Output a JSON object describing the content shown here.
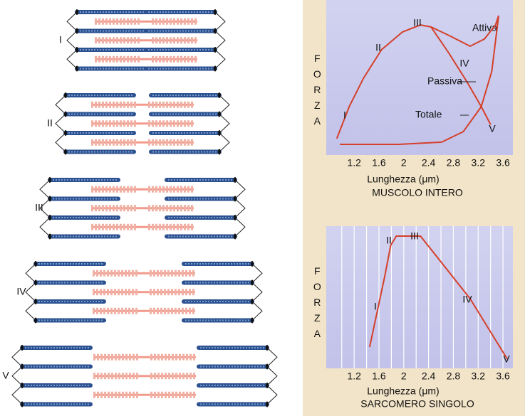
{
  "diagram": {
    "labels": [
      "I",
      "II",
      "III",
      "IV",
      "V"
    ]
  },
  "chart_data": [
    {
      "type": "line",
      "subtitle": "MUSCOLO INTERO",
      "xlabel": "Lunghezza (μm)",
      "ylabel": "FORZA",
      "xlim": [
        0.75,
        3.76
      ],
      "ylim": [
        0,
        100
      ],
      "xticks": [
        1.2,
        1.6,
        2.0,
        2.4,
        2.8,
        3.2,
        3.6
      ],
      "stage_labels": [
        "I",
        "II",
        "III",
        "IV",
        "V"
      ],
      "color": "#d4402a",
      "series": [
        {
          "name": "Attiva",
          "x": [
            0.92,
            1.12,
            1.35,
            1.64,
            1.98,
            2.27,
            2.44,
            2.73,
            3.02,
            3.25,
            3.4
          ],
          "values": [
            10.6,
            31.2,
            49.5,
            67.9,
            79.4,
            83.9,
            82.6,
            65.6,
            47.2,
            31.2,
            19.7
          ]
        },
        {
          "name": "Passiva",
          "x": [
            0.97,
            1.92,
            2.61,
            2.96,
            3.25,
            3.42,
            3.53
          ],
          "values": [
            6.9,
            6.9,
            8.3,
            15.1,
            31.2,
            54.1,
            89.9
          ]
        },
        {
          "name": "Totale",
          "x": [
            2.44,
            2.73,
            3.07,
            3.3,
            3.48,
            3.53
          ],
          "values": [
            82.6,
            77.1,
            70.2,
            74.8,
            83.9,
            89.9
          ]
        }
      ]
    },
    {
      "type": "line",
      "subtitle": "SARCOMERO SINGOLO",
      "xlabel": "Lunghezza (μm)",
      "ylabel": "FORZA",
      "xlim": [
        0.75,
        3.76
      ],
      "ylim": [
        0,
        100
      ],
      "xticks": [
        1.2,
        1.6,
        2.0,
        2.4,
        2.8,
        3.2,
        3.6
      ],
      "xgrid": [
        1.0,
        1.2,
        1.4,
        1.6,
        1.8,
        2.0,
        2.2,
        2.4,
        2.6,
        2.8,
        3.0,
        3.2,
        3.4,
        3.6
      ],
      "stage_labels": [
        "I",
        "II",
        "III",
        "IV",
        "V"
      ],
      "color": "#d4402a",
      "series": [
        {
          "x": [
            1.45,
            1.69,
            1.79,
            1.88,
            2.27,
            3.07,
            3.67
          ],
          "values": [
            15,
            64,
            86.5,
            93,
            93,
            49,
            6.5
          ]
        }
      ]
    }
  ]
}
